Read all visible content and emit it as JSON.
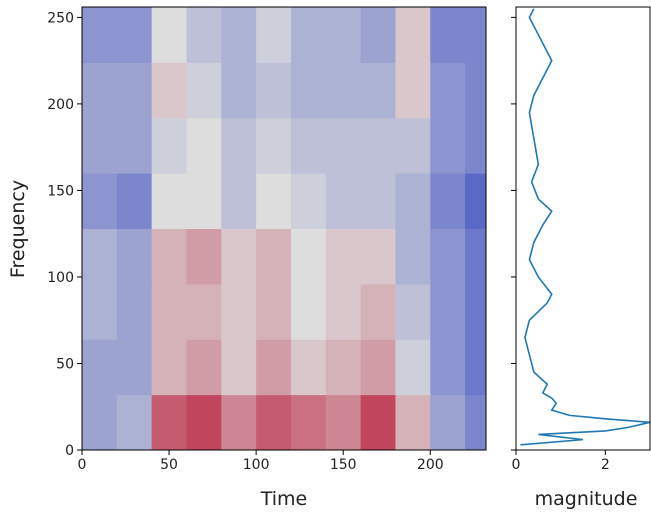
{
  "chart_data": [
    {
      "type": "heatmap",
      "xlabel": "Time",
      "ylabel": "Frequency",
      "x_bins": [
        0,
        20,
        40,
        60,
        80,
        100,
        120,
        140,
        160,
        180,
        200,
        220,
        232
      ],
      "y_bins": [
        0,
        32,
        64,
        96,
        128,
        160,
        192,
        224,
        256
      ],
      "values": [
        [
          0.3,
          0.35,
          0.8,
          0.85,
          0.7,
          0.8,
          0.75,
          0.7,
          0.85,
          0.6,
          0.3,
          0.2
        ],
        [
          0.3,
          0.3,
          0.6,
          0.65,
          0.55,
          0.65,
          0.55,
          0.6,
          0.65,
          0.45,
          0.25,
          0.15
        ],
        [
          0.35,
          0.3,
          0.6,
          0.6,
          0.55,
          0.6,
          0.5,
          0.55,
          0.6,
          0.4,
          0.25,
          0.15
        ],
        [
          0.35,
          0.3,
          0.6,
          0.65,
          0.55,
          0.6,
          0.5,
          0.55,
          0.55,
          0.35,
          0.25,
          0.15
        ],
        [
          0.25,
          0.2,
          0.5,
          0.5,
          0.4,
          0.5,
          0.45,
          0.4,
          0.4,
          0.35,
          0.2,
          0.1
        ],
        [
          0.3,
          0.3,
          0.45,
          0.5,
          0.4,
          0.45,
          0.4,
          0.4,
          0.4,
          0.4,
          0.25,
          0.2
        ],
        [
          0.3,
          0.3,
          0.55,
          0.45,
          0.35,
          0.4,
          0.35,
          0.35,
          0.35,
          0.55,
          0.25,
          0.2
        ],
        [
          0.25,
          0.25,
          0.5,
          0.4,
          0.35,
          0.45,
          0.35,
          0.35,
          0.3,
          0.55,
          0.2,
          0.2
        ]
      ],
      "colormap": "coolwarm",
      "clim": [
        0,
        1
      ],
      "xlim": [
        0,
        232
      ],
      "ylim": [
        0,
        256
      ],
      "xticks": [
        0,
        50,
        100,
        150,
        200
      ],
      "yticks": [
        0,
        50,
        100,
        150,
        200,
        250
      ]
    },
    {
      "type": "line",
      "xlabel": "magnitude",
      "color": "#1f77b4",
      "y": [
        3,
        6,
        9,
        11,
        13,
        16,
        18,
        20,
        23,
        27,
        30,
        33,
        38,
        45,
        55,
        65,
        75,
        85,
        90,
        100,
        110,
        120,
        130,
        138,
        145,
        155,
        165,
        180,
        195,
        205,
        215,
        225,
        230,
        240,
        250,
        255
      ],
      "values": [
        0.1,
        1.5,
        0.5,
        2.0,
        2.5,
        3.0,
        2.0,
        1.2,
        0.8,
        0.9,
        0.8,
        0.6,
        0.7,
        0.4,
        0.3,
        0.2,
        0.3,
        0.7,
        0.8,
        0.5,
        0.3,
        0.4,
        0.6,
        0.8,
        0.5,
        0.35,
        0.5,
        0.4,
        0.3,
        0.4,
        0.6,
        0.8,
        0.7,
        0.5,
        0.3,
        0.4
      ],
      "xlim": [
        0,
        3
      ],
      "ylim": [
        0,
        256
      ],
      "xticks": [
        0,
        2
      ],
      "yticks": [
        0,
        50,
        100,
        150,
        200,
        250
      ]
    }
  ]
}
